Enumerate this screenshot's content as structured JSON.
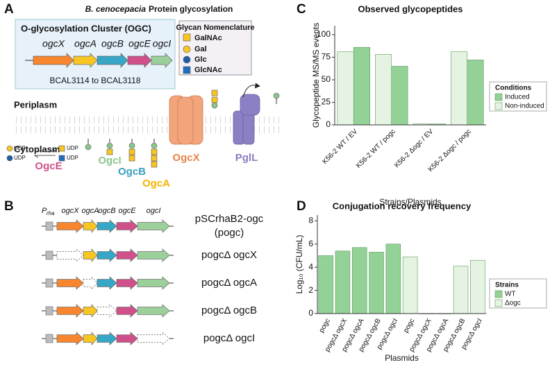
{
  "panel_labels": [
    "A",
    "B",
    "C",
    "D"
  ],
  "panel_a": {
    "organism": "B. cenocepacia",
    "title": "Protein glycosylation",
    "cluster": {
      "title": "O-glycosylation Cluster (OGC)",
      "genes": [
        "ogcX",
        "ogcA",
        "ogcB",
        "ogcE",
        "ogcI"
      ],
      "locus": "BCAL3114 to BCAL3118"
    },
    "glycan_legend": {
      "title": "Glycan Nomenclature",
      "items": [
        "GalNAc",
        "Gal",
        "Glc",
        "GlcNAc"
      ]
    },
    "compartments": [
      "Periplasm",
      "Cytoplasm"
    ],
    "proteins": [
      "OgcX",
      "PglL",
      "OgcI",
      "OgcB",
      "OgcA",
      "OgcE"
    ],
    "udp": [
      "UDP",
      "UDP",
      "UDP",
      "UDP"
    ]
  },
  "panel_b": {
    "promoter": "P",
    "promoter_sub": "rha",
    "genes": [
      "ogcX",
      "ogcA",
      "ogcB",
      "ogcE",
      "ogcI"
    ],
    "constructs": [
      [
        "pSCrhaB2-ogc",
        "(pogc)"
      ],
      [
        "pogcΔ ogcX"
      ],
      [
        "pogcΔ ogcA"
      ],
      [
        "pogcΔ ogcB"
      ],
      [
        "pogcΔ ogcI"
      ]
    ]
  },
  "chart_data": [
    {
      "type": "bar",
      "title": "Observed glycopeptides",
      "y_label": "Glycopeptide MS/MS events",
      "x_label": "Strains/Plasmids",
      "categories": [
        "K56-2 WT / EV",
        "K56-2 WT / pogc",
        "K56-2 Δogc / EV",
        "K56-2 Δogc / pogc"
      ],
      "series": [
        {
          "name": "Induced",
          "color": "#93d196",
          "values": [
            86,
            65,
            1,
            72
          ]
        },
        {
          "name": "Non-induced",
          "color": "#e5f3e3",
          "values": [
            81,
            78,
            1,
            81
          ]
        }
      ],
      "ylim": [
        0,
        110
      ],
      "yticks": [
        0,
        25,
        50,
        75,
        100
      ],
      "legend_title": "Conditions",
      "legend": "right"
    },
    {
      "type": "bar",
      "title": "Conjugation recovery frequency",
      "y_label": "Log₁₀ (CFU/mL)",
      "x_label": "Plasmids",
      "categories": [
        "pogc",
        "pogcΔ ogcX",
        "pogcΔ ogcA",
        "pogcΔ ogcB",
        "pogcΔ ogcI",
        "pogc",
        "pogcΔ ogcX",
        "pogcΔ ogcA",
        "pogcΔ ogcB",
        "pogcΔ ogcI"
      ],
      "series": [
        {
          "name": "WT",
          "color": "#93d196",
          "values": [
            5.0,
            5.4,
            5.7,
            5.3,
            6.0,
            null,
            null,
            null,
            null,
            null
          ]
        },
        {
          "name": "Δogc",
          "color": "#e5f3e3",
          "values": [
            null,
            null,
            null,
            null,
            null,
            4.9,
            0,
            0,
            4.1,
            4.6
          ]
        }
      ],
      "ylim": [
        0,
        8.5
      ],
      "yticks": [
        0,
        2,
        4,
        6,
        8
      ],
      "legend_title": "Strains",
      "legend": "right"
    }
  ]
}
